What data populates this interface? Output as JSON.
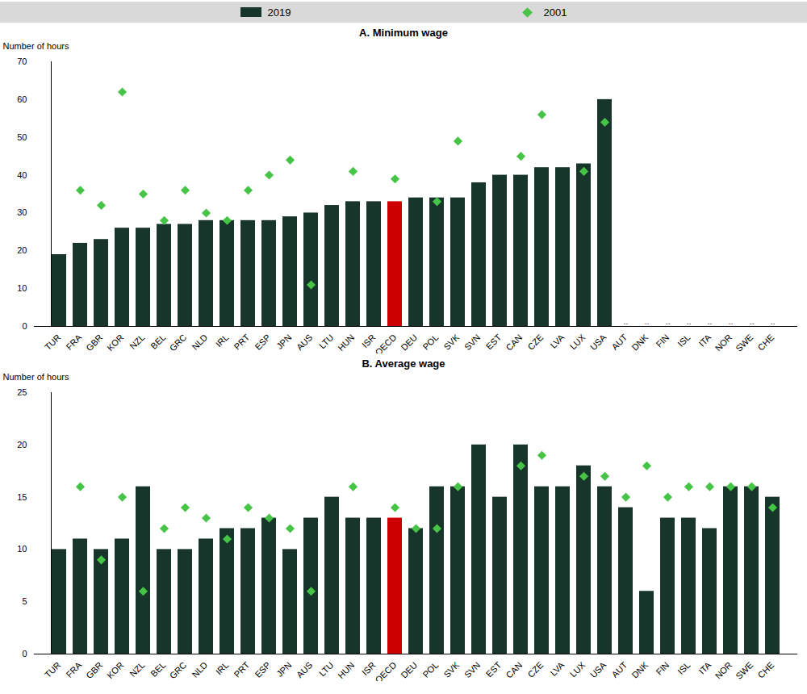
{
  "chart_data": [
    {
      "type": "bar",
      "title": "A. Minimum wage",
      "y_label": "Number of hours",
      "legend": "top",
      "categories": [
        "TUR",
        "FRA",
        "GBR",
        "KOR",
        "NZL",
        "BEL",
        "GRC",
        "NLD",
        "IRL",
        "PRT",
        "ESP",
        "JPN",
        "AUS",
        "LTU",
        "HUN",
        "ISR",
        "OECD",
        "DEU",
        "POL",
        "SVK",
        "SVN",
        "EST",
        "CAN",
        "CZE",
        "LVA",
        "LUX",
        "USA",
        "AUT",
        "DNK",
        "FIN",
        "ISL",
        "ITA",
        "NOR",
        "SWE",
        "CHE"
      ],
      "series": [
        {
          "name": "2019",
          "type": "bar",
          "color": "#18352b",
          "colors": [
            "#18352b",
            "#18352b",
            "#18352b",
            "#18352b",
            "#18352b",
            "#18352b",
            "#18352b",
            "#18352b",
            "#18352b",
            "#18352b",
            "#18352b",
            "#18352b",
            "#18352b",
            "#18352b",
            "#18352b",
            "#18352b",
            "#cc0000",
            "#18352b",
            "#18352b",
            "#18352b",
            "#18352b",
            "#18352b",
            "#18352b",
            "#18352b",
            "#18352b",
            "#18352b",
            "#18352b",
            "#18352b",
            "#18352b",
            "#18352b",
            "#18352b",
            "#18352b",
            "#18352b",
            "#18352b",
            "#18352b"
          ],
          "values": [
            19,
            22,
            23,
            26,
            26,
            27,
            27,
            28,
            28,
            28,
            28,
            29,
            30,
            32,
            33,
            33,
            33,
            34,
            34,
            34,
            38,
            40,
            40,
            42,
            42,
            43,
            60,
            null,
            null,
            null,
            null,
            null,
            null,
            null,
            null
          ]
        },
        {
          "name": "2001",
          "type": "scatter",
          "marker": "diamond",
          "color": "#45c445",
          "values": [
            null,
            36,
            32,
            62,
            35,
            28,
            36,
            30,
            28,
            36,
            40,
            44,
            11,
            null,
            41,
            null,
            39,
            null,
            33,
            49,
            null,
            null,
            45,
            56,
            null,
            41,
            54,
            null,
            null,
            null,
            null,
            null,
            null,
            null,
            null
          ]
        }
      ],
      "annotations": [
        {
          "x": "AUT",
          "text": ".."
        },
        {
          "x": "DNK",
          "text": ".."
        },
        {
          "x": "FIN",
          "text": ".."
        },
        {
          "x": "ISL",
          "text": ".."
        },
        {
          "x": "ITA",
          "text": ".."
        },
        {
          "x": "NOR",
          "text": ".."
        },
        {
          "x": "SWE",
          "text": ".."
        },
        {
          "x": "CHE",
          "text": ".."
        }
      ],
      "ylim": [
        0,
        70
      ],
      "yticks": [
        0,
        10,
        20,
        30,
        40,
        50,
        60,
        70
      ],
      "grid": false
    },
    {
      "type": "bar",
      "title": "B. Average wage",
      "y_label": "Number of hours",
      "categories": [
        "TUR",
        "FRA",
        "GBR",
        "KOR",
        "NZL",
        "BEL",
        "GRC",
        "NLD",
        "IRL",
        "PRT",
        "ESP",
        "JPN",
        "AUS",
        "LTU",
        "HUN",
        "ISR",
        "OECD",
        "DEU",
        "POL",
        "SVK",
        "SVN",
        "EST",
        "CAN",
        "CZE",
        "LVA",
        "LUX",
        "USA",
        "AUT",
        "DNK",
        "FIN",
        "ISL",
        "ITA",
        "NOR",
        "SWE",
        "CHE"
      ],
      "series": [
        {
          "name": "2019",
          "type": "bar",
          "color": "#18352b",
          "colors": [
            "#18352b",
            "#18352b",
            "#18352b",
            "#18352b",
            "#18352b",
            "#18352b",
            "#18352b",
            "#18352b",
            "#18352b",
            "#18352b",
            "#18352b",
            "#18352b",
            "#18352b",
            "#18352b",
            "#18352b",
            "#18352b",
            "#cc0000",
            "#18352b",
            "#18352b",
            "#18352b",
            "#18352b",
            "#18352b",
            "#18352b",
            "#18352b",
            "#18352b",
            "#18352b",
            "#18352b",
            "#18352b",
            "#18352b",
            "#18352b",
            "#18352b",
            "#18352b",
            "#18352b",
            "#18352b",
            "#18352b"
          ],
          "values": [
            10,
            11,
            10,
            11,
            16,
            10,
            10,
            11,
            12,
            12,
            13,
            10,
            13,
            15,
            13,
            13,
            13,
            12,
            16,
            16,
            20,
            15,
            20,
            16,
            16,
            18,
            16,
            14,
            6,
            13,
            13,
            12,
            16,
            16,
            15
          ]
        },
        {
          "name": "2001",
          "type": "scatter",
          "marker": "diamond",
          "color": "#45c445",
          "values": [
            null,
            16,
            9,
            15,
            6,
            12,
            14,
            13,
            11,
            14,
            13,
            12,
            6,
            null,
            16,
            null,
            14,
            12,
            12,
            16,
            null,
            null,
            18,
            19,
            null,
            17,
            17,
            15,
            18,
            15,
            16,
            16,
            16,
            16,
            14
          ]
        }
      ],
      "ylim": [
        0,
        25
      ],
      "yticks": [
        0,
        5,
        10,
        15,
        20,
        25
      ],
      "grid": false
    }
  ]
}
